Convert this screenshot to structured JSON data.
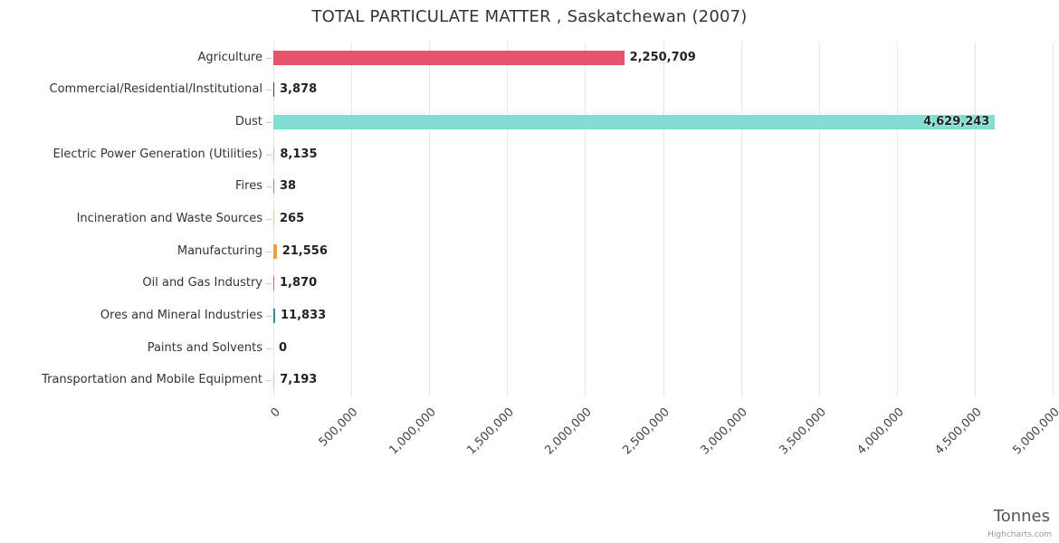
{
  "credits": "Highcharts.com",
  "chart_data": {
    "type": "bar",
    "title": "TOTAL PARTICULATE MATTER , Saskatchewan (2007)",
    "xlabel": "Tonnes",
    "ylabel": "",
    "xlim": [
      0,
      5000000
    ],
    "grid": true,
    "legend": false,
    "categories": [
      "Agriculture",
      "Commercial/Residential/Institutional",
      "Dust",
      "Electric Power Generation (Utilities)",
      "Fires",
      "Incineration and Waste Sources",
      "Manufacturing",
      "Oil and Gas Industry",
      "Ores and Mineral Industries",
      "Paints and Solvents",
      "Transportation and Mobile Equipment"
    ],
    "values": [
      2250709,
      3878,
      4629243,
      8135,
      38,
      265,
      21556,
      1870,
      11833,
      0,
      7193
    ],
    "value_labels": [
      "2,250,709",
      "3,878",
      "4,629,243",
      "8,135",
      "38",
      "265",
      "21,556",
      "1,870",
      "11,833",
      "0",
      "7,193"
    ],
    "bar_colors": [
      "#e8536e",
      "#434348",
      "#7fded2",
      "#90ed7d",
      "#8085e9",
      "#e4d354",
      "#e9a23c",
      "#f45b5b",
      "#2b908f",
      "#7cb5ec",
      "#91e8e1"
    ],
    "x_ticks": [
      {
        "value": 0,
        "label": "0"
      },
      {
        "value": 500000,
        "label": "500,000"
      },
      {
        "value": 1000000,
        "label": "1,000,000"
      },
      {
        "value": 1500000,
        "label": "1,500,000"
      },
      {
        "value": 2000000,
        "label": "2,000,000"
      },
      {
        "value": 2500000,
        "label": "2,500,000"
      },
      {
        "value": 3000000,
        "label": "3,000,000"
      },
      {
        "value": 3500000,
        "label": "3,500,000"
      },
      {
        "value": 4000000,
        "label": "4,000,000"
      },
      {
        "value": 4500000,
        "label": "4,500,000"
      },
      {
        "value": 5000000,
        "label": "5,000,000"
      }
    ]
  }
}
